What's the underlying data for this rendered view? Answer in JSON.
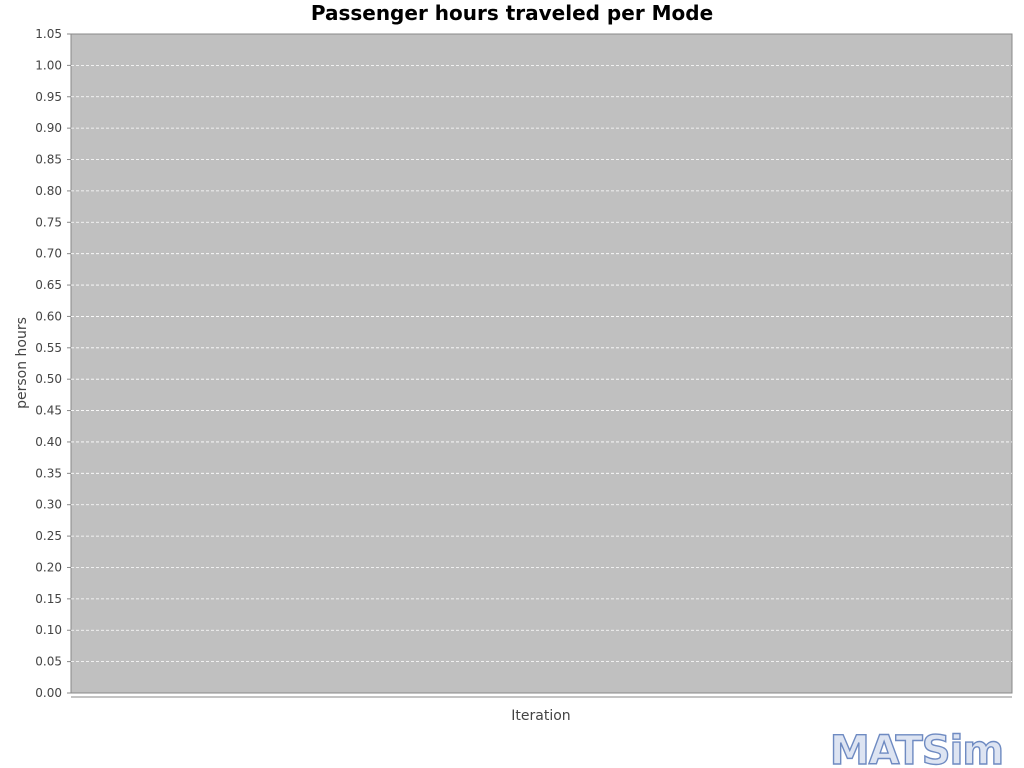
{
  "chart_data": {
    "type": "line",
    "title": "Passenger hours traveled per Mode",
    "xlabel": "Iteration",
    "ylabel": "person hours",
    "ylim": [
      0,
      1.05
    ],
    "y_ticks": [
      "0.00",
      "0.05",
      "0.10",
      "0.15",
      "0.20",
      "0.25",
      "0.30",
      "0.35",
      "0.40",
      "0.45",
      "0.50",
      "0.55",
      "0.60",
      "0.65",
      "0.70",
      "0.75",
      "0.80",
      "0.85",
      "0.90",
      "0.95",
      "1.00",
      "1.05"
    ],
    "series": [],
    "grid": true,
    "legend": "none",
    "plot_background": "#c0c0c0",
    "gridline_color": "#ffffff"
  },
  "logo": {
    "text": "MATSim"
  }
}
